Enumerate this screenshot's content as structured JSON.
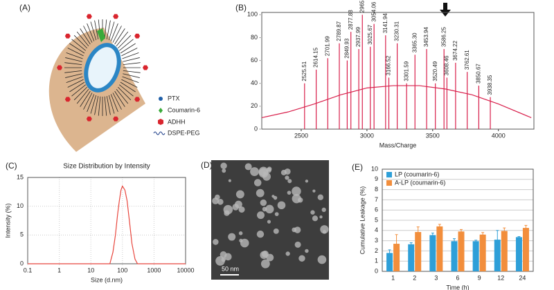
{
  "figure": {
    "a": {
      "label": "(A)",
      "legend": [
        "PTX",
        "Coumarin-6",
        "ADHH",
        "DSPE-PEG"
      ]
    },
    "d": {
      "label": "(D)",
      "scale_bar": "50 nm"
    }
  },
  "chart_data": [
    {
      "type": "line",
      "label": "(B)",
      "xlabel": "Mass/Charge",
      "x": [
        2200,
        2400,
        2600,
        2800,
        3000,
        3200,
        3400,
        3600,
        3800,
        4000,
        4250
      ],
      "series": [
        {
          "color": "#d81e4a",
          "values": [
            10,
            15,
            22,
            30,
            36,
            38,
            38,
            35,
            30,
            22,
            10
          ]
        }
      ],
      "peaks": {
        "x": [
          2525.51,
          2614.15,
          2701.99,
          2789.87,
          2849.93,
          2877.88,
          2937.99,
          2965,
          3025.67,
          3054.06,
          3141.94,
          3166.52,
          3230.31,
          3301.59,
          3365.3,
          3453.94,
          3520.49,
          3586.25,
          3608.46,
          3674.22,
          3762.61,
          3850.67,
          3938.35
        ],
        "labels": [
          "2525.51",
          "2614.15",
          "2701.99",
          "2789.87",
          "2849.93",
          "2877.88",
          "2937.99",
          "2965",
          "3025.67",
          "3054.06",
          "3141.94",
          "3166.52",
          "3230.31",
          "3301.59",
          "3365.30",
          "3453.94",
          "3520.49",
          "3586.25",
          "3608.46",
          "3674.22",
          "3762.61",
          "3850.67",
          "3938.35"
        ],
        "values": [
          40,
          52,
          62,
          75,
          60,
          85,
          70,
          100,
          72,
          92,
          82,
          45,
          75,
          40,
          65,
          70,
          40,
          70,
          45,
          58,
          50,
          38,
          28
        ]
      },
      "xlim": [
        2200,
        4270
      ],
      "xticks": [
        2500,
        3000,
        3500,
        4000
      ],
      "ylim": [
        0,
        102
      ],
      "yticks": [
        0,
        20,
        40,
        60,
        80,
        100
      ]
    },
    {
      "type": "line",
      "label": "(C)",
      "title": "Size Distribution by Intensity",
      "xlabel": "Size (d.nm)",
      "ylabel": "Intensity (%)",
      "xscale": "log",
      "grid": true,
      "x": [
        0.1,
        1,
        10,
        30,
        40,
        50,
        60,
        70,
        80,
        90,
        100,
        120,
        140,
        170,
        200,
        250,
        300,
        1000,
        10000
      ],
      "series": [
        {
          "color": "#e8453c",
          "values": [
            0,
            0,
            0,
            0,
            0,
            2,
            5,
            8.5,
            11,
            12.8,
            13.5,
            12.8,
            11,
            7,
            3.5,
            0.8,
            0,
            0,
            0
          ]
        }
      ],
      "xlim": [
        0.1,
        10000
      ],
      "xticks": [
        0.1,
        1,
        10,
        100,
        1000,
        10000
      ],
      "ylim": [
        0,
        15
      ],
      "yticks": [
        0,
        5,
        10,
        15
      ]
    },
    {
      "type": "bar",
      "label": "(E)",
      "xlabel": "Time (h)",
      "ylabel": "Cumulative Leakage (%)",
      "grid": true,
      "legend": "upper left",
      "categories": [
        "1",
        "2",
        "3",
        "6",
        "9",
        "12",
        "24"
      ],
      "series": [
        {
          "name": "LP (coumarin-6)",
          "color": "#2e9fd8",
          "values": [
            1.8,
            2.65,
            3.55,
            2.95,
            2.95,
            3.1,
            3.35
          ],
          "errors": [
            0.3,
            0.15,
            0.2,
            0.25,
            0.1,
            0.9,
            0.05
          ]
        },
        {
          "name": "A-LP (coumarin-6)",
          "color": "#f28e3c",
          "values": [
            2.7,
            3.85,
            4.4,
            3.9,
            3.6,
            3.95,
            4.25
          ],
          "errors": [
            0.9,
            0.5,
            0.2,
            0.2,
            0.2,
            0.3,
            0.25
          ]
        }
      ],
      "ylim": [
        0,
        10
      ],
      "yticks": [
        0,
        1,
        2,
        3,
        4,
        5,
        6,
        7,
        8,
        9,
        10
      ]
    }
  ]
}
